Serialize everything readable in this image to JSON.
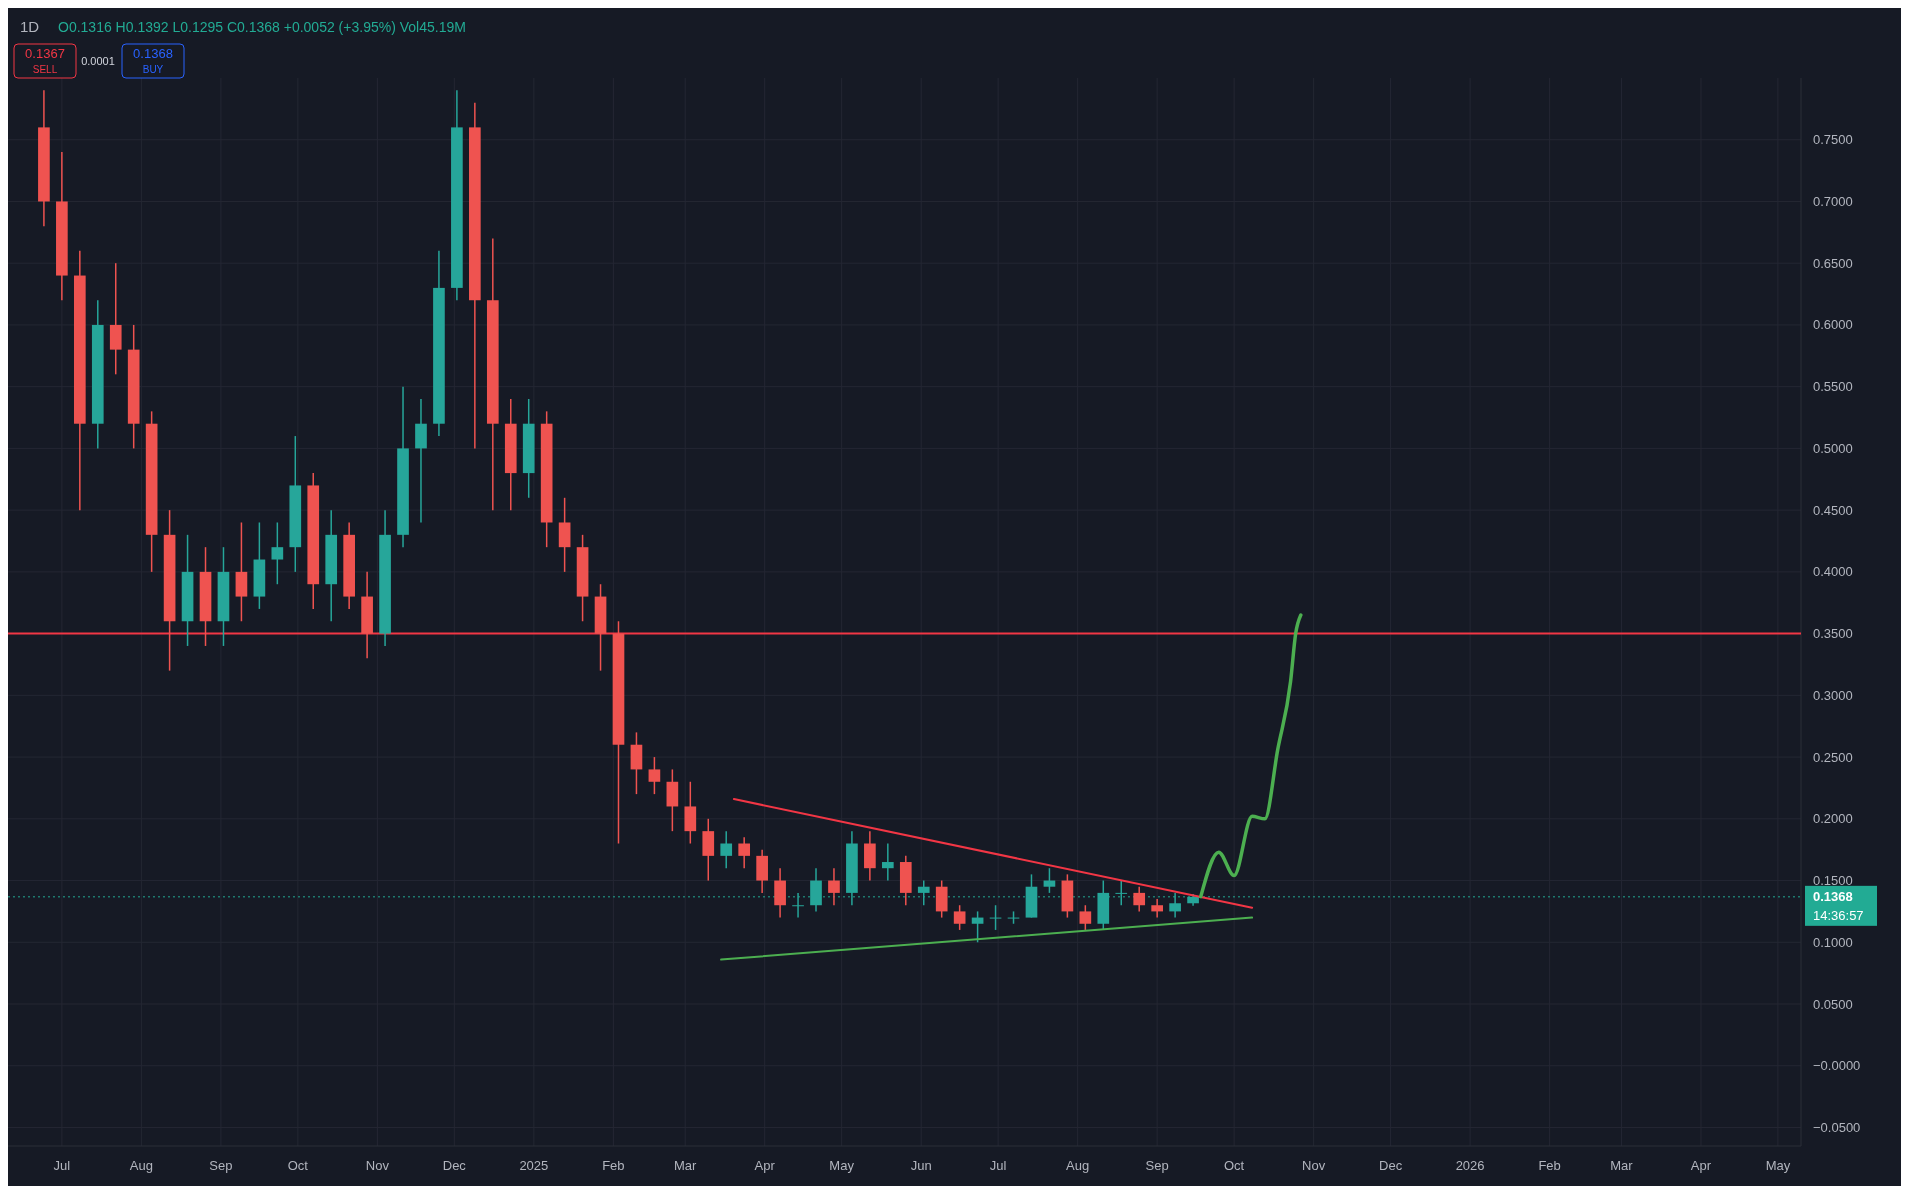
{
  "chart_data": {
    "type": "candlestick",
    "subtitle": "1D",
    "x": [
      "2024-06-24",
      "2024-07-01",
      "2024-07-08",
      "2024-07-15",
      "2024-07-22",
      "2024-07-29",
      "2024-08-05",
      "2024-08-12",
      "2024-08-19",
      "2024-08-26",
      "2024-09-02",
      "2024-09-09",
      "2024-09-16",
      "2024-09-23",
      "2024-09-30",
      "2024-10-07",
      "2024-10-14",
      "2024-10-21",
      "2024-10-28",
      "2024-11-04",
      "2024-11-11",
      "2024-11-18",
      "2024-11-25",
      "2024-12-02",
      "2024-12-09",
      "2024-12-16",
      "2024-12-23",
      "2024-12-30",
      "2025-01-06",
      "2025-01-13",
      "2025-01-20",
      "2025-01-27",
      "2025-02-03",
      "2025-02-10",
      "2025-02-17",
      "2025-02-24",
      "2025-03-03",
      "2025-03-10",
      "2025-03-17",
      "2025-03-24",
      "2025-03-31",
      "2025-04-07",
      "2025-04-14",
      "2025-04-21",
      "2025-04-28",
      "2025-05-05",
      "2025-05-12",
      "2025-05-19",
      "2025-05-26",
      "2025-06-02",
      "2025-06-09",
      "2025-06-16",
      "2025-06-23",
      "2025-06-30",
      "2025-07-07",
      "2025-07-14",
      "2025-07-21",
      "2025-07-28",
      "2025-08-04",
      "2025-08-11",
      "2025-08-18",
      "2025-08-25",
      "2025-09-01",
      "2025-09-08",
      "2025-09-15"
    ],
    "ohlc": [
      [
        0.76,
        0.79,
        0.68,
        0.7
      ],
      [
        0.7,
        0.74,
        0.62,
        0.64
      ],
      [
        0.64,
        0.66,
        0.45,
        0.52
      ],
      [
        0.52,
        0.62,
        0.5,
        0.6
      ],
      [
        0.6,
        0.65,
        0.56,
        0.58
      ],
      [
        0.58,
        0.6,
        0.5,
        0.52
      ],
      [
        0.52,
        0.53,
        0.4,
        0.43
      ],
      [
        0.43,
        0.45,
        0.32,
        0.36
      ],
      [
        0.36,
        0.43,
        0.34,
        0.4
      ],
      [
        0.4,
        0.42,
        0.34,
        0.36
      ],
      [
        0.36,
        0.42,
        0.34,
        0.4
      ],
      [
        0.4,
        0.44,
        0.36,
        0.38
      ],
      [
        0.38,
        0.44,
        0.37,
        0.41
      ],
      [
        0.41,
        0.44,
        0.39,
        0.42
      ],
      [
        0.42,
        0.51,
        0.4,
        0.47
      ],
      [
        0.47,
        0.48,
        0.37,
        0.39
      ],
      [
        0.39,
        0.45,
        0.36,
        0.43
      ],
      [
        0.43,
        0.44,
        0.37,
        0.38
      ],
      [
        0.38,
        0.4,
        0.33,
        0.35
      ],
      [
        0.35,
        0.45,
        0.34,
        0.43
      ],
      [
        0.43,
        0.55,
        0.42,
        0.5
      ],
      [
        0.5,
        0.54,
        0.44,
        0.52
      ],
      [
        0.52,
        0.66,
        0.51,
        0.63
      ],
      [
        0.63,
        0.79,
        0.62,
        0.76
      ],
      [
        0.76,
        0.78,
        0.5,
        0.62
      ],
      [
        0.62,
        0.67,
        0.45,
        0.52
      ],
      [
        0.52,
        0.54,
        0.45,
        0.48
      ],
      [
        0.48,
        0.54,
        0.46,
        0.52
      ],
      [
        0.52,
        0.53,
        0.42,
        0.44
      ],
      [
        0.44,
        0.46,
        0.4,
        0.42
      ],
      [
        0.42,
        0.43,
        0.36,
        0.38
      ],
      [
        0.38,
        0.39,
        0.32,
        0.35
      ],
      [
        0.35,
        0.36,
        0.18,
        0.26
      ],
      [
        0.26,
        0.27,
        0.22,
        0.24
      ],
      [
        0.24,
        0.25,
        0.22,
        0.23
      ],
      [
        0.23,
        0.24,
        0.19,
        0.21
      ],
      [
        0.21,
        0.23,
        0.18,
        0.19
      ],
      [
        0.19,
        0.2,
        0.15,
        0.17
      ],
      [
        0.17,
        0.19,
        0.16,
        0.18
      ],
      [
        0.18,
        0.185,
        0.16,
        0.17
      ],
      [
        0.17,
        0.175,
        0.14,
        0.15
      ],
      [
        0.15,
        0.16,
        0.12,
        0.13
      ],
      [
        0.13,
        0.14,
        0.12,
        0.13
      ],
      [
        0.13,
        0.16,
        0.125,
        0.15
      ],
      [
        0.15,
        0.16,
        0.13,
        0.14
      ],
      [
        0.14,
        0.19,
        0.13,
        0.18
      ],
      [
        0.18,
        0.19,
        0.15,
        0.16
      ],
      [
        0.16,
        0.18,
        0.15,
        0.165
      ],
      [
        0.165,
        0.17,
        0.13,
        0.14
      ],
      [
        0.14,
        0.15,
        0.13,
        0.145
      ],
      [
        0.145,
        0.15,
        0.12,
        0.125
      ],
      [
        0.125,
        0.13,
        0.11,
        0.115
      ],
      [
        0.115,
        0.125,
        0.1,
        0.12
      ],
      [
        0.12,
        0.13,
        0.11,
        0.12
      ],
      [
        0.12,
        0.125,
        0.115,
        0.12
      ],
      [
        0.12,
        0.155,
        0.12,
        0.145
      ],
      [
        0.145,
        0.16,
        0.14,
        0.15
      ],
      [
        0.15,
        0.155,
        0.12,
        0.125
      ],
      [
        0.125,
        0.13,
        0.11,
        0.115
      ],
      [
        0.115,
        0.15,
        0.11,
        0.14
      ],
      [
        0.14,
        0.15,
        0.13,
        0.14
      ],
      [
        0.14,
        0.145,
        0.125,
        0.13
      ],
      [
        0.13,
        0.135,
        0.12,
        0.125
      ],
      [
        0.125,
        0.14,
        0.12,
        0.1316
      ],
      [
        0.1316,
        0.1392,
        0.1295,
        0.1368
      ]
    ],
    "colors": [
      "#ef5350",
      "#ef5350",
      "#ef5350",
      "#26a69a",
      "#ef5350",
      "#ef5350",
      "#ef5350",
      "#ef5350",
      "#26a69a",
      "#ef5350",
      "#26a69a",
      "#ef5350",
      "#26a69a",
      "#26a69a",
      "#26a69a",
      "#ef5350",
      "#26a69a",
      "#ef5350",
      "#ef5350",
      "#26a69a",
      "#26a69a",
      "#26a69a",
      "#26a69a",
      "#26a69a",
      "#ef5350",
      "#ef5350",
      "#ef5350",
      "#26a69a",
      "#ef5350",
      "#ef5350",
      "#ef5350",
      "#ef5350",
      "#ef5350",
      "#ef5350",
      "#ef5350",
      "#ef5350",
      "#ef5350",
      "#ef5350",
      "#26a69a",
      "#ef5350",
      "#ef5350",
      "#ef5350",
      "#26a69a",
      "#26a69a",
      "#ef5350",
      "#26a69a",
      "#ef5350",
      "#26a69a",
      "#ef5350",
      "#26a69a",
      "#ef5350",
      "#ef5350",
      "#26a69a",
      "#26a69a",
      "#26a69a",
      "#26a69a",
      "#26a69a",
      "#ef5350",
      "#ef5350",
      "#26a69a",
      "#26a69a",
      "#ef5350",
      "#ef5350",
      "#26a69a",
      "#26a69a"
    ],
    "series": [
      {
        "type": "line",
        "color": "#f23645",
        "x": [
          "2025-03-20",
          "2025-10-08"
        ],
        "values": [
          0.216,
          0.128
        ]
      },
      {
        "type": "line",
        "color": "#4caf50",
        "x": [
          "2025-03-15",
          "2025-10-08"
        ],
        "values": [
          0.086,
          0.12
        ]
      },
      {
        "type": "line",
        "color": "#4caf50",
        "x": [
          "2025-09-18",
          "2025-09-25",
          "2025-10-01",
          "2025-10-08",
          "2025-10-13",
          "2025-10-18",
          "2025-10-23",
          "2025-10-25",
          "2025-10-27"
        ],
        "values": [
          0.137,
          0.173,
          0.154,
          0.202,
          0.2,
          0.256,
          0.311,
          0.35,
          0.365
        ]
      }
    ],
    "ref_lines": [
      {
        "axis": "y",
        "value": 0.35,
        "color": "#f23645",
        "line_style": "solid"
      },
      {
        "axis": "y",
        "value": 0.1368,
        "label": "0.1368",
        "color": "#22ab94",
        "line_style": "dotted"
      }
    ],
    "annotations": [
      "O0.1316 H0.1392 L0.1295 C0.1368 +0.0052 (+3.95%) Vol45.19M",
      "0.1367",
      "SELL",
      "0.0001",
      "0.1368",
      "BUY",
      "14:36:57"
    ],
    "xlim": [
      "2024-06-10",
      "2026-05-10"
    ],
    "xticks": [
      {
        "value": "2024-07-01",
        "label": "Jul"
      },
      {
        "value": "2024-08-01",
        "label": "Aug"
      },
      {
        "value": "2024-09-01",
        "label": "Sep"
      },
      {
        "value": "2024-10-01",
        "label": "Oct"
      },
      {
        "value": "2024-11-01",
        "label": "Nov"
      },
      {
        "value": "2024-12-01",
        "label": "Dec"
      },
      {
        "value": "2025-01-01",
        "label": "2025"
      },
      {
        "value": "2025-02-01",
        "label": "Feb"
      },
      {
        "value": "2025-03-01",
        "label": "Mar"
      },
      {
        "value": "2025-04-01",
        "label": "Apr"
      },
      {
        "value": "2025-05-01",
        "label": "May"
      },
      {
        "value": "2025-06-01",
        "label": "Jun"
      },
      {
        "value": "2025-07-01",
        "label": "Jul"
      },
      {
        "value": "2025-08-01",
        "label": "Aug"
      },
      {
        "value": "2025-09-01",
        "label": "Sep"
      },
      {
        "value": "2025-10-01",
        "label": "Oct"
      },
      {
        "value": "2025-11-01",
        "label": "Nov"
      },
      {
        "value": "2025-12-01",
        "label": "Dec"
      },
      {
        "value": "2026-01-01",
        "label": "2026"
      },
      {
        "value": "2026-02-01",
        "label": "Feb"
      },
      {
        "value": "2026-03-01",
        "label": "Mar"
      },
      {
        "value": "2026-04-01",
        "label": "Apr"
      },
      {
        "value": "2026-05-01",
        "label": "May"
      }
    ],
    "ylim": [
      -0.065,
      0.8
    ],
    "yticks": [
      {
        "value": -0.05,
        "label": "−0.0500"
      },
      {
        "value": 0,
        "label": "−0.0000"
      },
      {
        "value": 0.05,
        "label": "0.0500"
      },
      {
        "value": 0.1,
        "label": "0.1000"
      },
      {
        "value": 0.15,
        "label": "0.1500"
      },
      {
        "value": 0.2,
        "label": "0.2000"
      },
      {
        "value": 0.25,
        "label": "0.2500"
      },
      {
        "value": 0.3,
        "label": "0.3000"
      },
      {
        "value": 0.35,
        "label": "0.3500"
      },
      {
        "value": 0.4,
        "label": "0.4000"
      },
      {
        "value": 0.45,
        "label": "0.4500"
      },
      {
        "value": 0.5,
        "label": "0.5000"
      },
      {
        "value": 0.55,
        "label": "0.5500"
      },
      {
        "value": 0.6,
        "label": "0.6000"
      },
      {
        "value": 0.65,
        "label": "0.6500"
      },
      {
        "value": 0.7,
        "label": "0.7000"
      },
      {
        "value": 0.75,
        "label": "0.7500"
      }
    ],
    "grid": true
  }
}
